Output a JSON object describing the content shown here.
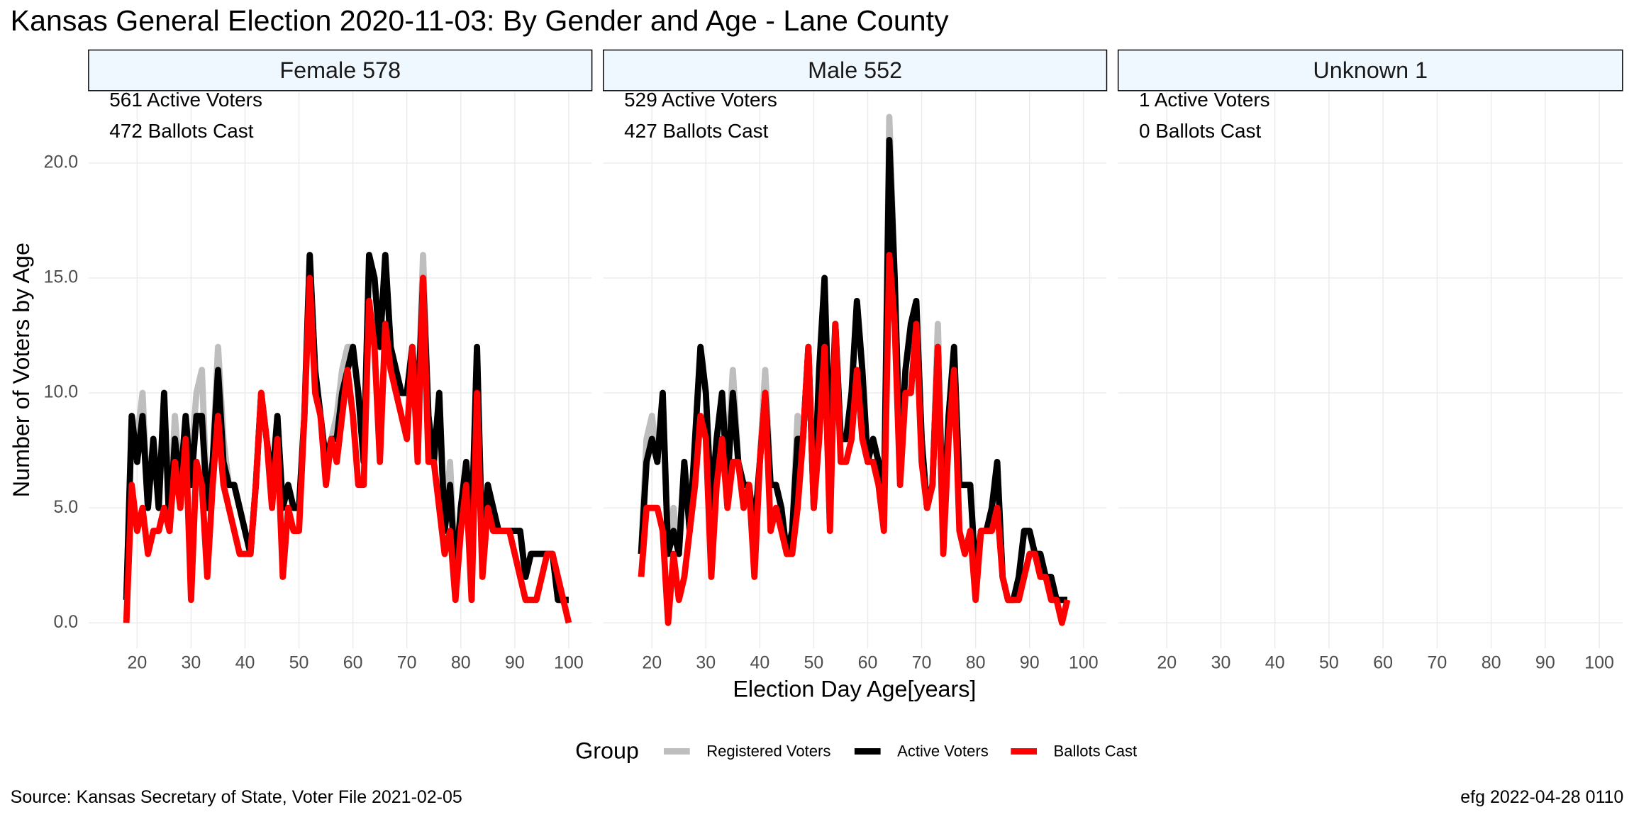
{
  "figure": {
    "title": "Kansas General Election 2020-11-03:  By Gender and Age - Lane County",
    "xlabel": "Election Day Age[years]",
    "ylabel": "Number of Voters by Age",
    "legend_title": "Group",
    "source": "Source:  Kansas Secretary of State, Voter File  2021-02-05",
    "credit": "efg 2022-04-28 0110"
  },
  "chart_data": [
    {
      "type": "line",
      "title": "Female 578",
      "annotations": [
        "561 Active Voters",
        "472 Ballots Cast"
      ],
      "x": [
        18,
        19,
        20,
        21,
        22,
        23,
        24,
        25,
        26,
        27,
        28,
        29,
        30,
        31,
        32,
        33,
        34,
        35,
        36,
        37,
        38,
        39,
        40,
        41,
        42,
        43,
        44,
        45,
        46,
        47,
        48,
        49,
        50,
        51,
        52,
        53,
        54,
        55,
        56,
        57,
        58,
        59,
        60,
        61,
        62,
        63,
        64,
        65,
        66,
        67,
        68,
        69,
        70,
        71,
        72,
        73,
        74,
        75,
        76,
        77,
        78,
        79,
        80,
        81,
        82,
        83,
        84,
        85,
        86,
        87,
        88,
        89,
        90,
        91,
        92,
        93,
        94,
        95,
        96,
        97,
        98,
        99,
        100
      ],
      "series": [
        {
          "name": "Registered Voters",
          "color": "#bebebe",
          "values": [
            1,
            9,
            8,
            10,
            5,
            8,
            5,
            10,
            4,
            9,
            6,
            9,
            7,
            10,
            11,
            5,
            7,
            12,
            8,
            6,
            6,
            5,
            4,
            3,
            6,
            10,
            8,
            6,
            9,
            5,
            6,
            5,
            5,
            9,
            16,
            11,
            9,
            7,
            8,
            9,
            11,
            12,
            12,
            10,
            7,
            16,
            15,
            12,
            16,
            12,
            11,
            10,
            10,
            12,
            9,
            16,
            9,
            7,
            10,
            4,
            7,
            2,
            5,
            7,
            4,
            12,
            3,
            6,
            5,
            4,
            4,
            4,
            4,
            4,
            2,
            3,
            3,
            3,
            3,
            3,
            1,
            1,
            1
          ]
        },
        {
          "name": "Active Voters",
          "color": "#000000",
          "values": [
            1,
            9,
            7,
            9,
            5,
            8,
            5,
            10,
            4,
            8,
            6,
            9,
            6,
            9,
            9,
            5,
            7,
            11,
            7,
            6,
            6,
            5,
            4,
            3,
            6,
            10,
            8,
            6,
            9,
            5,
            6,
            5,
            5,
            9,
            16,
            11,
            9,
            7,
            8,
            8,
            10,
            11,
            12,
            10,
            7,
            16,
            15,
            12,
            16,
            12,
            11,
            10,
            10,
            12,
            9,
            15,
            9,
            7,
            10,
            4,
            6,
            2,
            5,
            7,
            4,
            12,
            3,
            6,
            5,
            4,
            4,
            4,
            4,
            4,
            2,
            3,
            3,
            3,
            3,
            3,
            1,
            1,
            1
          ]
        },
        {
          "name": "Ballots Cast",
          "color": "#ff0000",
          "values": [
            0,
            6,
            4,
            5,
            3,
            4,
            4,
            5,
            4,
            7,
            5,
            8,
            1,
            7,
            6,
            2,
            6,
            9,
            6,
            5,
            4,
            3,
            3,
            3,
            6,
            10,
            8,
            5,
            8,
            2,
            5,
            4,
            4,
            9,
            15,
            10,
            9,
            6,
            8,
            7,
            9,
            11,
            9,
            6,
            6,
            14,
            12,
            7,
            13,
            11,
            10,
            9,
            8,
            12,
            7,
            15,
            7,
            7,
            5,
            3,
            4,
            1,
            4,
            6,
            1,
            10,
            2,
            5,
            4,
            4,
            4,
            4,
            3,
            2,
            1,
            1,
            1,
            2,
            3,
            3,
            2,
            1,
            0
          ]
        }
      ],
      "xlim": [
        11,
        104.3
      ],
      "ylim": [
        -1.1,
        23.1
      ],
      "xticks": [
        20,
        30,
        40,
        50,
        60,
        70,
        80,
        90,
        100
      ],
      "yticks": [
        {
          "value": 0,
          "label": "0.0"
        },
        {
          "value": 5,
          "label": "5.0"
        },
        {
          "value": 10,
          "label": "10.0"
        },
        {
          "value": 15,
          "label": "15.0"
        },
        {
          "value": 20,
          "label": "20.0"
        }
      ],
      "grid": true
    },
    {
      "type": "line",
      "title": "Male 552",
      "annotations": [
        "529 Active Voters",
        "427 Ballots Cast"
      ],
      "x": [
        18,
        19,
        20,
        21,
        22,
        23,
        24,
        25,
        26,
        27,
        28,
        29,
        30,
        31,
        32,
        33,
        34,
        35,
        36,
        37,
        38,
        39,
        40,
        41,
        42,
        43,
        44,
        45,
        46,
        47,
        48,
        49,
        50,
        51,
        52,
        53,
        54,
        55,
        56,
        57,
        58,
        59,
        60,
        61,
        62,
        63,
        64,
        65,
        66,
        67,
        68,
        69,
        70,
        71,
        72,
        73,
        74,
        75,
        76,
        77,
        78,
        79,
        80,
        81,
        82,
        83,
        84,
        85,
        86,
        87,
        88,
        89,
        90,
        91,
        92,
        93,
        94,
        95,
        96,
        97
      ],
      "series": [
        {
          "name": "Registered Voters",
          "color": "#bebebe",
          "values": [
            3,
            8,
            9,
            7,
            10,
            3,
            5,
            3,
            7,
            4,
            8,
            12,
            10,
            5,
            8,
            10,
            7,
            11,
            7,
            6,
            6,
            4,
            7,
            11,
            6,
            6,
            5,
            3,
            4,
            9,
            8,
            12,
            5,
            11,
            15,
            7,
            13,
            8,
            8,
            10,
            14,
            11,
            7,
            8,
            7,
            5,
            22,
            15,
            7,
            11,
            13,
            14,
            8,
            5,
            6,
            13,
            4,
            9,
            12,
            6,
            6,
            6,
            2,
            4,
            4,
            5,
            7,
            2,
            1,
            1,
            2,
            4,
            4,
            3,
            3,
            2,
            2,
            1,
            1,
            1
          ]
        },
        {
          "name": "Active Voters",
          "color": "#000000",
          "values": [
            3,
            7,
            8,
            7,
            10,
            3,
            4,
            3,
            7,
            4,
            8,
            12,
            10,
            5,
            8,
            10,
            6,
            10,
            7,
            6,
            6,
            4,
            7,
            10,
            6,
            6,
            5,
            3,
            4,
            8,
            8,
            12,
            5,
            11,
            15,
            7,
            13,
            8,
            8,
            10,
            14,
            11,
            7,
            8,
            7,
            5,
            21,
            15,
            7,
            11,
            13,
            14,
            8,
            5,
            6,
            12,
            4,
            9,
            12,
            6,
            6,
            6,
            2,
            4,
            4,
            5,
            7,
            2,
            1,
            1,
            2,
            4,
            4,
            3,
            3,
            2,
            2,
            1,
            1,
            1
          ]
        },
        {
          "name": "Ballots Cast",
          "color": "#ff0000",
          "values": [
            2,
            5,
            5,
            5,
            4,
            0,
            3,
            1,
            2,
            4,
            6,
            9,
            8,
            2,
            6,
            8,
            5,
            7,
            7,
            5,
            6,
            2,
            7,
            10,
            4,
            5,
            4,
            3,
            3,
            5,
            8,
            12,
            5,
            8,
            12,
            4,
            13,
            7,
            7,
            8,
            11,
            8,
            7,
            7,
            6,
            4,
            16,
            13,
            6,
            10,
            10,
            13,
            7,
            5,
            6,
            12,
            3,
            8,
            11,
            4,
            3,
            4,
            1,
            4,
            4,
            4,
            5,
            2,
            1,
            1,
            1,
            2,
            3,
            3,
            2,
            2,
            1,
            1,
            0,
            1
          ]
        }
      ],
      "xlim": [
        11,
        104.3
      ],
      "ylim": [
        -1.1,
        23.1
      ],
      "xticks": [
        20,
        30,
        40,
        50,
        60,
        70,
        80,
        90,
        100
      ],
      "yticks": [
        {
          "value": 0,
          "label": "0.0"
        },
        {
          "value": 5,
          "label": "5.0"
        },
        {
          "value": 10,
          "label": "10.0"
        },
        {
          "value": 15,
          "label": "15.0"
        },
        {
          "value": 20,
          "label": "20.0"
        }
      ],
      "grid": true
    },
    {
      "type": "line",
      "title": "Unknown 1",
      "annotations": [
        "1 Active Voters",
        "0 Ballots Cast"
      ],
      "x": [],
      "series": [
        {
          "name": "Registered Voters",
          "color": "#bebebe",
          "values": []
        },
        {
          "name": "Active Voters",
          "color": "#000000",
          "values": []
        },
        {
          "name": "Ballots Cast",
          "color": "#ff0000",
          "values": []
        }
      ],
      "xlim": [
        11,
        104.3
      ],
      "ylim": [
        -1.1,
        23.1
      ],
      "xticks": [
        20,
        30,
        40,
        50,
        60,
        70,
        80,
        90,
        100
      ],
      "yticks": [
        {
          "value": 0,
          "label": "0.0"
        },
        {
          "value": 5,
          "label": "5.0"
        },
        {
          "value": 10,
          "label": "10.0"
        },
        {
          "value": 15,
          "label": "15.0"
        },
        {
          "value": 20,
          "label": "20.0"
        }
      ],
      "grid": true
    }
  ]
}
